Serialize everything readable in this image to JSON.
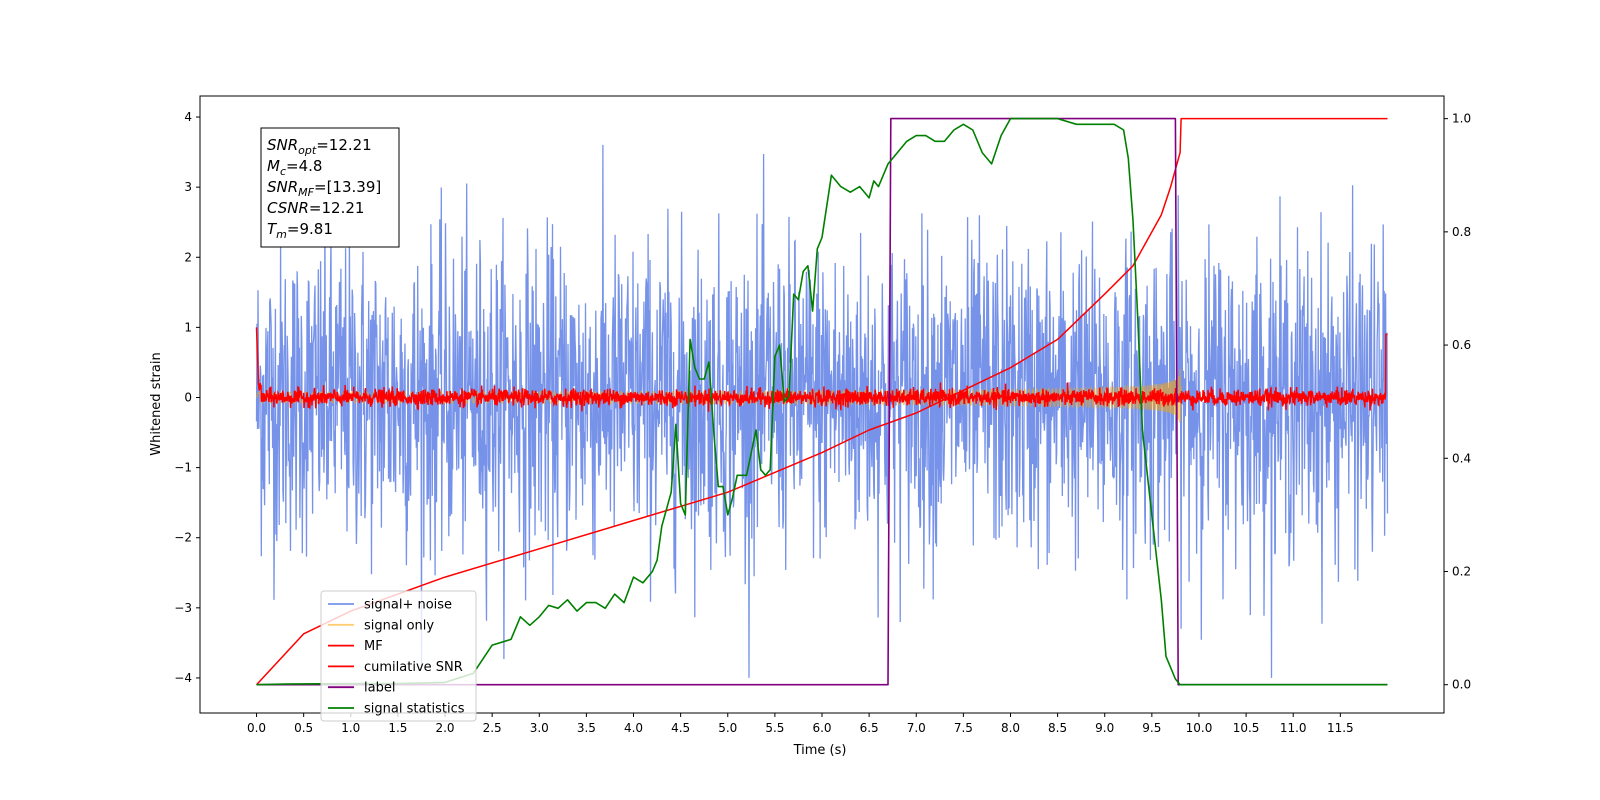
{
  "chart_data": {
    "type": "line",
    "xlabel": "Time (s)",
    "ylabel": "Whitened strain",
    "xlim": [
      -0.6,
      12.6
    ],
    "ylim": [
      -4.5,
      4.3
    ],
    "y2lim": [
      -0.05,
      1.04
    ],
    "xticks": [
      "0.0",
      "0.5",
      "1.0",
      "1.5",
      "2.0",
      "2.5",
      "3.0",
      "3.5",
      "4.0",
      "4.5",
      "5.0",
      "5.5",
      "6.0",
      "6.5",
      "7.0",
      "7.5",
      "8.0",
      "8.5",
      "9.0",
      "9.5",
      "10.0",
      "10.5",
      "11.0",
      "11.5"
    ],
    "yticks": [
      "4",
      "3",
      "2",
      "1",
      "0",
      "−1",
      "−2",
      "−3",
      "−4"
    ],
    "y2ticks": [
      "1.0",
      "0.8",
      "0.6",
      "0.4",
      "0.2",
      "0.0"
    ],
    "annotation_lines": [
      {
        "main": "SNR",
        "sub": "opt",
        "rest": "=12.21"
      },
      {
        "main": "M",
        "sub": "c",
        "rest": "=4.8"
      },
      {
        "main": "SNR",
        "sub": "MF",
        "rest": "=[13.39]"
      },
      {
        "main": "CSNR",
        "sub": "",
        "rest": "=12.21"
      },
      {
        "main": "T",
        "sub": "m",
        "rest": "=9.81"
      }
    ],
    "legend_position": "lower-left",
    "merger_time": 9.81,
    "series": [
      {
        "name": "signal+ noise",
        "color": "#4169e1",
        "axis": "left",
        "description": "noise around 0, std ~1.1, range approx -4 to 3.9, t 0 to 12"
      },
      {
        "name": "signal only",
        "color": "#ffa500",
        "axis": "left",
        "description": "chirp envelope growing toward merger at 9.81, peak ~1.2"
      },
      {
        "name": "MF",
        "color": "#ff0000",
        "axis": "left",
        "description": "matched filter output near 0, spikes ~1 at t=0 and t=12"
      },
      {
        "name": "cumilative SNR",
        "color": "#ff0000",
        "axis": "right",
        "x": [
          0,
          0.5,
          1,
          2,
          3,
          4,
          5,
          6,
          6.5,
          7,
          7.5,
          8,
          8.5,
          9,
          9.3,
          9.6,
          9.7,
          9.8,
          9.81,
          10,
          12
        ],
        "y": [
          0,
          0.09,
          0.13,
          0.19,
          0.24,
          0.29,
          0.34,
          0.41,
          0.45,
          0.48,
          0.52,
          0.56,
          0.61,
          0.69,
          0.74,
          0.83,
          0.88,
          0.94,
          1.0,
          1.0,
          1.0
        ]
      },
      {
        "name": "label",
        "color": "#800080",
        "axis": "right",
        "x": [
          0,
          6.7,
          6.73,
          9.75,
          9.78,
          12
        ],
        "y": [
          0,
          0,
          1,
          1,
          0,
          0
        ]
      },
      {
        "name": "signal statistics",
        "color": "#008000",
        "axis": "right",
        "x": [
          0,
          0.3,
          1,
          1.5,
          2,
          2.3,
          2.5,
          2.7,
          2.8,
          2.9,
          3.0,
          3.1,
          3.2,
          3.3,
          3.4,
          3.5,
          3.6,
          3.7,
          3.8,
          3.9,
          4.0,
          4.1,
          4.2,
          4.25,
          4.3,
          4.4,
          4.45,
          4.5,
          4.55,
          4.6,
          4.65,
          4.7,
          4.75,
          4.8,
          4.85,
          4.9,
          4.95,
          5.0,
          5.05,
          5.1,
          5.2,
          5.25,
          5.3,
          5.35,
          5.4,
          5.45,
          5.5,
          5.55,
          5.6,
          5.65,
          5.7,
          5.75,
          5.8,
          5.85,
          5.9,
          5.95,
          6.0,
          6.1,
          6.2,
          6.3,
          6.4,
          6.5,
          6.55,
          6.6,
          6.7,
          6.8,
          6.9,
          7.0,
          7.1,
          7.2,
          7.3,
          7.4,
          7.5,
          7.6,
          7.7,
          7.8,
          7.9,
          8.0,
          8.2,
          8.5,
          8.7,
          8.9,
          9.0,
          9.1,
          9.2,
          9.25,
          9.3,
          9.35,
          9.4,
          9.5,
          9.6,
          9.65,
          9.7,
          9.75,
          9.8,
          10,
          12
        ],
        "y": [
          0,
          0.001,
          0.002,
          0.002,
          0.004,
          0.02,
          0.07,
          0.08,
          0.12,
          0.105,
          0.12,
          0.14,
          0.135,
          0.15,
          0.13,
          0.145,
          0.145,
          0.135,
          0.16,
          0.145,
          0.19,
          0.18,
          0.2,
          0.22,
          0.28,
          0.34,
          0.46,
          0.32,
          0.3,
          0.61,
          0.56,
          0.54,
          0.54,
          0.57,
          0.45,
          0.35,
          0.35,
          0.3,
          0.33,
          0.37,
          0.37,
          0.41,
          0.45,
          0.38,
          0.37,
          0.38,
          0.58,
          0.6,
          0.5,
          0.51,
          0.69,
          0.68,
          0.73,
          0.74,
          0.66,
          0.77,
          0.79,
          0.9,
          0.88,
          0.87,
          0.88,
          0.86,
          0.89,
          0.88,
          0.92,
          0.94,
          0.96,
          0.97,
          0.97,
          0.96,
          0.96,
          0.98,
          0.99,
          0.98,
          0.94,
          0.92,
          0.97,
          1.0,
          1.0,
          1.0,
          0.99,
          0.99,
          0.99,
          0.99,
          0.98,
          0.93,
          0.82,
          0.65,
          0.45,
          0.3,
          0.15,
          0.05,
          0.03,
          0.01,
          0.0,
          0.0,
          0.0
        ]
      }
    ]
  }
}
